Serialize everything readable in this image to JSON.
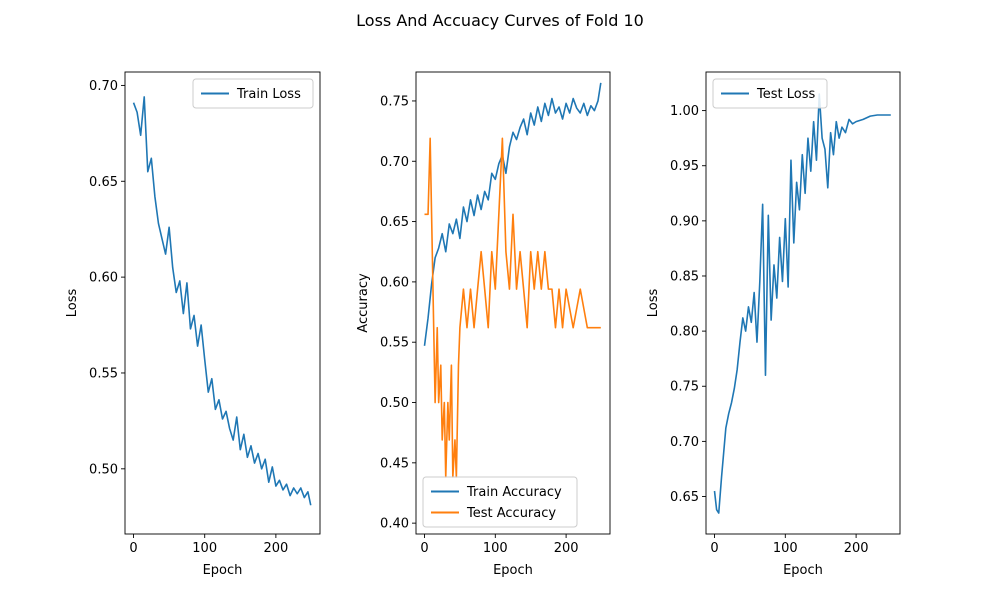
{
  "figure": {
    "title": "Loss And Accuacy Curves of Fold 10"
  },
  "colors": {
    "train": "#1f77b4",
    "test": "#ff7f0e"
  },
  "chart_data": [
    {
      "type": "line",
      "xlabel": "Epoch",
      "ylabel": "Loss",
      "xlim": [
        -12,
        262
      ],
      "ylim": [
        0.466,
        0.707
      ],
      "xticks": [
        0,
        100,
        200
      ],
      "xtick_labels": [
        "0",
        "100",
        "200"
      ],
      "yticks": [
        0.5,
        0.55,
        0.6,
        0.65,
        0.7
      ],
      "ytick_labels": [
        "0.50",
        "0.55",
        "0.60",
        "0.65",
        "0.70"
      ],
      "legend": "upper-right",
      "series": [
        {
          "name": "Train Loss",
          "color": "#1f77b4",
          "x": [
            0,
            5,
            10,
            15,
            20,
            25,
            30,
            35,
            40,
            45,
            50,
            55,
            60,
            65,
            70,
            75,
            80,
            85,
            90,
            95,
            100,
            105,
            110,
            115,
            120,
            125,
            130,
            135,
            140,
            145,
            150,
            155,
            160,
            165,
            170,
            175,
            180,
            185,
            190,
            195,
            200,
            205,
            210,
            215,
            220,
            225,
            230,
            235,
            240,
            245,
            249
          ],
          "y": [
            0.691,
            0.686,
            0.674,
            0.694,
            0.655,
            0.662,
            0.642,
            0.628,
            0.62,
            0.612,
            0.626,
            0.605,
            0.592,
            0.598,
            0.581,
            0.597,
            0.573,
            0.58,
            0.564,
            0.575,
            0.557,
            0.54,
            0.547,
            0.531,
            0.536,
            0.526,
            0.53,
            0.521,
            0.515,
            0.527,
            0.51,
            0.518,
            0.506,
            0.512,
            0.503,
            0.508,
            0.5,
            0.505,
            0.493,
            0.501,
            0.491,
            0.494,
            0.489,
            0.492,
            0.486,
            0.49,
            0.487,
            0.49,
            0.485,
            0.488,
            0.481
          ]
        }
      ]
    },
    {
      "type": "line",
      "xlabel": "Epoch",
      "ylabel": "Accuracy",
      "xlim": [
        -12,
        262
      ],
      "ylim": [
        0.391,
        0.774
      ],
      "xticks": [
        0,
        100,
        200
      ],
      "xtick_labels": [
        "0",
        "100",
        "200"
      ],
      "yticks": [
        0.4,
        0.45,
        0.5,
        0.55,
        0.6,
        0.65,
        0.7,
        0.75
      ],
      "ytick_labels": [
        "0.40",
        "0.45",
        "0.50",
        "0.55",
        "0.60",
        "0.65",
        "0.70",
        "0.75"
      ],
      "legend": "lower-left",
      "series": [
        {
          "name": "Train Accuracy",
          "color": "#1f77b4",
          "x": [
            0,
            5,
            10,
            15,
            20,
            25,
            30,
            35,
            40,
            45,
            50,
            55,
            60,
            65,
            70,
            75,
            80,
            85,
            90,
            95,
            100,
            105,
            110,
            115,
            120,
            125,
            130,
            135,
            140,
            145,
            150,
            155,
            160,
            165,
            170,
            175,
            180,
            185,
            190,
            195,
            200,
            205,
            210,
            215,
            220,
            225,
            230,
            235,
            240,
            245,
            249
          ],
          "y": [
            0.547,
            0.57,
            0.598,
            0.62,
            0.628,
            0.64,
            0.625,
            0.648,
            0.64,
            0.652,
            0.636,
            0.662,
            0.65,
            0.668,
            0.655,
            0.672,
            0.66,
            0.675,
            0.668,
            0.69,
            0.685,
            0.698,
            0.705,
            0.69,
            0.712,
            0.724,
            0.718,
            0.728,
            0.735,
            0.722,
            0.74,
            0.73,
            0.745,
            0.733,
            0.748,
            0.738,
            0.752,
            0.74,
            0.745,
            0.735,
            0.748,
            0.74,
            0.752,
            0.744,
            0.74,
            0.748,
            0.738,
            0.746,
            0.742,
            0.75,
            0.765
          ]
        },
        {
          "name": "Test Accuracy",
          "color": "#ff7f0e",
          "x": [
            0,
            5,
            8,
            10,
            13,
            15,
            18,
            20,
            23,
            25,
            28,
            30,
            33,
            35,
            38,
            40,
            43,
            45,
            48,
            50,
            55,
            60,
            65,
            70,
            75,
            80,
            85,
            90,
            95,
            100,
            105,
            110,
            115,
            120,
            125,
            130,
            135,
            140,
            145,
            150,
            155,
            160,
            165,
            170,
            175,
            180,
            185,
            190,
            195,
            200,
            210,
            220,
            230,
            240,
            249
          ],
          "y": [
            0.656,
            0.656,
            0.719,
            0.656,
            0.562,
            0.5,
            0.562,
            0.5,
            0.531,
            0.469,
            0.5,
            0.438,
            0.5,
            0.469,
            0.531,
            0.438,
            0.469,
            0.438,
            0.531,
            0.562,
            0.594,
            0.562,
            0.594,
            0.562,
            0.594,
            0.625,
            0.594,
            0.562,
            0.625,
            0.594,
            0.656,
            0.719,
            0.625,
            0.594,
            0.656,
            0.594,
            0.625,
            0.594,
            0.562,
            0.625,
            0.594,
            0.625,
            0.594,
            0.625,
            0.594,
            0.594,
            0.562,
            0.594,
            0.562,
            0.594,
            0.562,
            0.594,
            0.562,
            0.562,
            0.562
          ]
        }
      ]
    },
    {
      "type": "line",
      "xlabel": "Epoch",
      "ylabel": "Loss",
      "xlim": [
        -12,
        262
      ],
      "ylim": [
        0.616,
        1.035
      ],
      "xticks": [
        0,
        100,
        200
      ],
      "xtick_labels": [
        "0",
        "100",
        "200"
      ],
      "yticks": [
        0.65,
        0.7,
        0.75,
        0.8,
        0.85,
        0.9,
        0.95,
        1.0
      ],
      "ytick_labels": [
        "0.65",
        "0.70",
        "0.75",
        "0.80",
        "0.85",
        "0.90",
        "0.95",
        "1.00"
      ],
      "legend": "upper-left",
      "series": [
        {
          "name": "Test Loss",
          "color": "#1f77b4",
          "x": [
            0,
            3,
            6,
            10,
            13,
            16,
            20,
            24,
            28,
            32,
            36,
            40,
            44,
            48,
            52,
            56,
            60,
            64,
            68,
            72,
            76,
            80,
            84,
            88,
            92,
            96,
            100,
            104,
            108,
            112,
            116,
            120,
            124,
            128,
            132,
            136,
            140,
            144,
            148,
            152,
            156,
            160,
            164,
            168,
            172,
            176,
            180,
            185,
            190,
            195,
            200,
            210,
            220,
            230,
            240,
            249
          ],
          "y": [
            0.655,
            0.638,
            0.635,
            0.668,
            0.69,
            0.712,
            0.725,
            0.735,
            0.748,
            0.765,
            0.79,
            0.812,
            0.8,
            0.822,
            0.808,
            0.835,
            0.79,
            0.845,
            0.915,
            0.76,
            0.905,
            0.81,
            0.86,
            0.83,
            0.885,
            0.845,
            0.902,
            0.84,
            0.955,
            0.88,
            0.935,
            0.91,
            0.96,
            0.925,
            0.975,
            0.945,
            0.99,
            0.955,
            1.015,
            0.975,
            0.965,
            0.93,
            0.98,
            0.96,
            0.99,
            0.975,
            0.985,
            0.98,
            0.992,
            0.988,
            0.99,
            0.992,
            0.995,
            0.996,
            0.996,
            0.996
          ]
        }
      ]
    }
  ]
}
